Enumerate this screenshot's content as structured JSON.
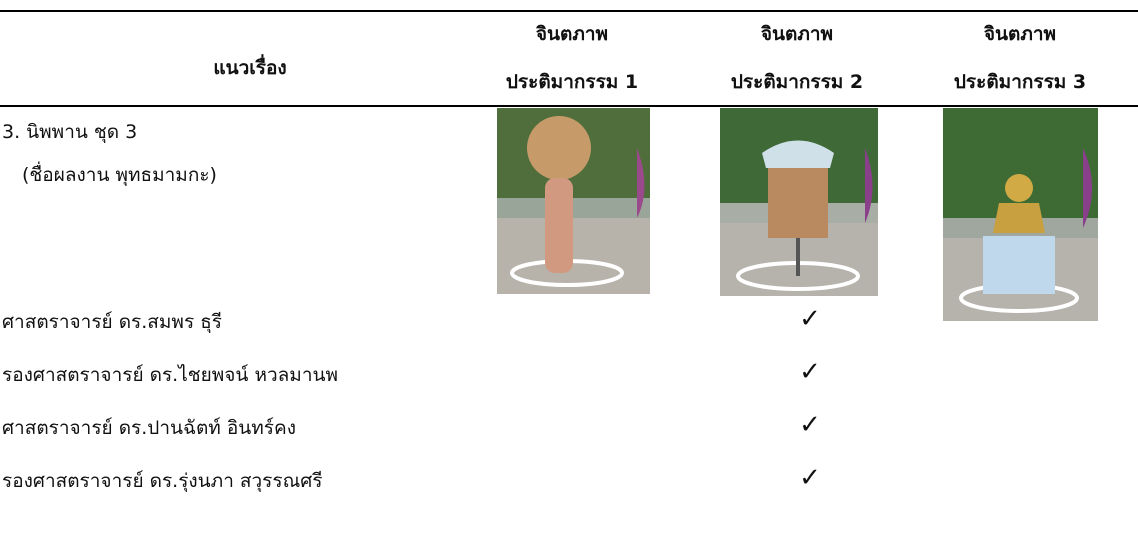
{
  "table": {
    "header": {
      "topic": "แนวเรื่อง",
      "columns": [
        [
          "จินตภาพ",
          "ประติมากรรม 1"
        ],
        [
          "จินตภาพ",
          "ประติมากรรม 2"
        ],
        [
          "จินตภาพ",
          "ประติมากรรม 3"
        ]
      ]
    },
    "work": {
      "title": "3. นิพพาน ชุด 3",
      "subtitle": "(ชื่อผลงาน พุทธมามกะ)"
    },
    "experts": [
      {
        "name": "ศาสตราจารย์ ดร.สมพร ธุรี",
        "check": "✓"
      },
      {
        "name": "รองศาสตราจารย์ ดร.ไชยพจน์ หวลมานพ",
        "check": "✓"
      },
      {
        "name": "ศาสตราจารย์ ดร.ปานฉัตท์ อินทร์คง",
        "check": "✓"
      },
      {
        "name": "รองศาสตราจารย์ ดร.รุ่งนภา สวุรรณศรี",
        "check": "✓"
      }
    ]
  }
}
